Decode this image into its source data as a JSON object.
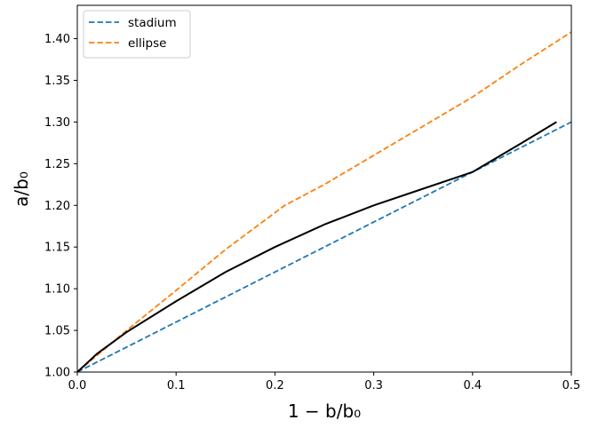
{
  "chart_data": {
    "type": "line",
    "xlabel": "1 − b/b₀",
    "ylabel": "a/b₀",
    "xlim": [
      0.0,
      0.5
    ],
    "ylim": [
      1.0,
      1.44
    ],
    "x_ticks": [
      0.0,
      0.1,
      0.2,
      0.3,
      0.4,
      0.5
    ],
    "x_tick_labels": [
      "0.0",
      "0.1",
      "0.2",
      "0.3",
      "0.4",
      "0.5"
    ],
    "y_ticks": [
      1.0,
      1.05,
      1.1,
      1.15,
      1.2,
      1.25,
      1.3,
      1.35,
      1.4
    ],
    "y_tick_labels": [
      "1.00",
      "1.05",
      "1.10",
      "1.15",
      "1.20",
      "1.25",
      "1.30",
      "1.35",
      "1.40"
    ],
    "grid": false,
    "legend": {
      "position": "top-left",
      "entries": [
        "stadium",
        "ellipse"
      ]
    },
    "series": [
      {
        "name": "stadium",
        "style": "dashed",
        "color": "#1f77b4",
        "x": [
          0.0,
          0.5
        ],
        "y": [
          1.0,
          1.3
        ]
      },
      {
        "name": "ellipse",
        "style": "dashed",
        "color": "#ff7f0e",
        "x": [
          0.0,
          0.05,
          0.1,
          0.15,
          0.21,
          0.25,
          0.3,
          0.35,
          0.4,
          0.45,
          0.5
        ],
        "y": [
          1.0,
          1.05,
          1.098,
          1.147,
          1.2,
          1.225,
          1.26,
          1.295,
          1.33,
          1.37,
          1.408
        ]
      },
      {
        "style": "solid",
        "color": "#000000",
        "x": [
          0.0,
          0.02,
          0.05,
          0.1,
          0.15,
          0.2,
          0.25,
          0.3,
          0.35,
          0.4,
          0.45,
          0.485
        ],
        "y": [
          1.0,
          1.022,
          1.048,
          1.085,
          1.12,
          1.15,
          1.177,
          1.2,
          1.22,
          1.24,
          1.275,
          1.3
        ]
      }
    ]
  }
}
